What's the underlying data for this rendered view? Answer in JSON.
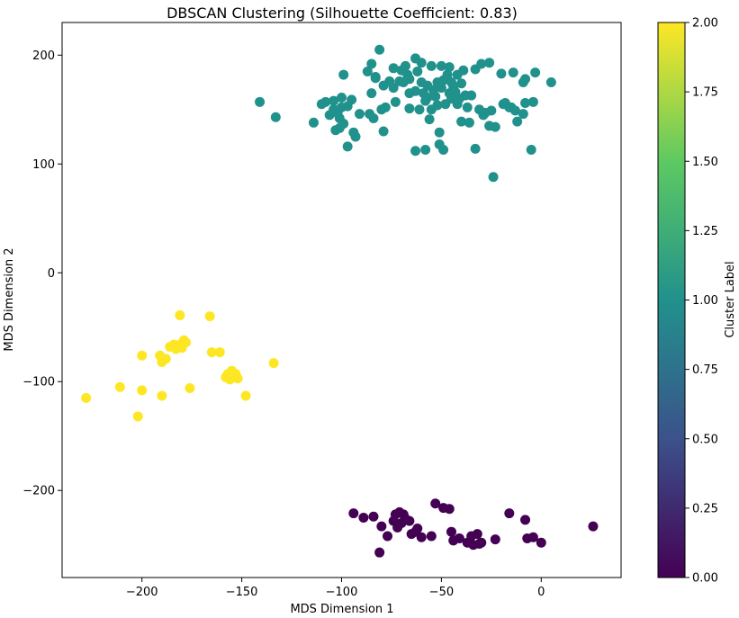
{
  "chart_data": {
    "type": "scatter",
    "title": "DBSCAN Clustering (Silhouette Coefficient: 0.83)",
    "xlabel": "MDS Dimension 1",
    "ylabel": "MDS Dimension 2",
    "xlim": [
      -240,
      40
    ],
    "ylim": [
      -280,
      230
    ],
    "xticks": [
      -200,
      -150,
      -100,
      -50,
      0
    ],
    "xtick_labels": [
      "−200",
      "−150",
      "−100",
      "−50",
      "0"
    ],
    "yticks": [
      -200,
      -100,
      0,
      100,
      200
    ],
    "ytick_labels": [
      "−200",
      "−100",
      "0",
      "100",
      "200"
    ],
    "grid": false,
    "colorbar": {
      "label": "Cluster Label",
      "range": [
        0.0,
        2.0
      ],
      "ticks": [
        0.0,
        0.25,
        0.5,
        0.75,
        1.0,
        1.25,
        1.5,
        1.75,
        2.0
      ],
      "tick_labels": [
        "0.00",
        "0.25",
        "0.50",
        "0.75",
        "1.00",
        "1.25",
        "1.50",
        "1.75",
        "2.00"
      ],
      "colormap": "viridis",
      "colors": [
        "#440154",
        "#3b528b",
        "#21918c",
        "#5ec962",
        "#fde725"
      ]
    },
    "series": [
      {
        "label": 1,
        "color": "#21918c",
        "points": [
          [
            -81,
            205
          ],
          [
            -85,
            192
          ],
          [
            -87,
            185
          ],
          [
            -83,
            180
          ],
          [
            -74,
            188
          ],
          [
            -79,
            172
          ],
          [
            -76,
            176
          ],
          [
            -70,
            186
          ],
          [
            -68,
            190
          ],
          [
            -63,
            197
          ],
          [
            -60,
            193
          ],
          [
            -55,
            190
          ],
          [
            -50,
            190
          ],
          [
            -46,
            189
          ],
          [
            -42,
            182
          ],
          [
            -39,
            186
          ],
          [
            -33,
            187
          ],
          [
            -30,
            192
          ],
          [
            -26,
            193
          ],
          [
            -20,
            183
          ],
          [
            -14,
            184
          ],
          [
            -9,
            175
          ],
          [
            -3,
            184
          ],
          [
            5,
            175
          ],
          [
            -99,
            182
          ],
          [
            -71,
            176
          ],
          [
            -66,
            165
          ],
          [
            -63,
            167
          ],
          [
            -59,
            165
          ],
          [
            -57,
            172
          ],
          [
            -54,
            168
          ],
          [
            -52,
            175
          ],
          [
            -50,
            170
          ],
          [
            -49,
            177
          ],
          [
            -47,
            182
          ],
          [
            -45,
            175
          ],
          [
            -43,
            166
          ],
          [
            -41,
            160
          ],
          [
            -48,
            155
          ],
          [
            -55,
            150
          ],
          [
            -61,
            150
          ],
          [
            -66,
            151
          ],
          [
            -73,
            157
          ],
          [
            -78,
            152
          ],
          [
            -85,
            165
          ],
          [
            -91,
            146
          ],
          [
            -97,
            153
          ],
          [
            -104,
            158
          ],
          [
            -108,
            157
          ],
          [
            -110,
            155
          ],
          [
            -104,
            150
          ],
          [
            -101,
            142
          ],
          [
            -99,
            137
          ],
          [
            -101,
            133
          ],
          [
            -103,
            131
          ],
          [
            -114,
            138
          ],
          [
            -94,
            129
          ],
          [
            -93,
            125
          ],
          [
            -97,
            116
          ],
          [
            -84,
            142
          ],
          [
            -79,
            130
          ],
          [
            -133,
            143
          ],
          [
            -141,
            157
          ],
          [
            -58,
            113
          ],
          [
            -63,
            112
          ],
          [
            -51,
            118
          ],
          [
            -49,
            113
          ],
          [
            -40,
            139
          ],
          [
            -36,
            138
          ],
          [
            -33,
            114
          ],
          [
            -29,
            145
          ],
          [
            -25,
            149
          ],
          [
            -26,
            135
          ],
          [
            -23,
            134
          ],
          [
            -16,
            152
          ],
          [
            -13,
            149
          ],
          [
            -12,
            139
          ],
          [
            -9,
            146
          ],
          [
            -8,
            156
          ],
          [
            -4,
            157
          ],
          [
            -8,
            178
          ],
          [
            -18,
            156
          ],
          [
            -5,
            113
          ],
          [
            -24,
            88
          ],
          [
            -56,
            141
          ],
          [
            -51,
            129
          ],
          [
            -38,
            163
          ],
          [
            -35,
            163
          ],
          [
            -62,
            185
          ],
          [
            -66,
            178
          ],
          [
            -69,
            175
          ],
          [
            -74,
            170
          ],
          [
            -46,
            165
          ],
          [
            -44,
            171
          ],
          [
            -58,
            158
          ],
          [
            -53,
            162
          ],
          [
            -100,
            161
          ],
          [
            -95,
            159
          ],
          [
            -86,
            146
          ],
          [
            -80,
            150
          ],
          [
            -106,
            145
          ],
          [
            -102,
            147
          ],
          [
            -100,
            152
          ],
          [
            -83,
            179
          ],
          [
            -67,
            182
          ],
          [
            -40,
            174
          ],
          [
            -37,
            152
          ],
          [
            -60,
            175
          ],
          [
            -57,
            161
          ],
          [
            -52,
            154
          ],
          [
            -45,
            160
          ],
          [
            -42,
            155
          ],
          [
            -31,
            150
          ],
          [
            -28,
            147
          ],
          [
            -19,
            155
          ],
          [
            -15,
            152
          ]
        ]
      },
      {
        "label": 2,
        "color": "#fde725",
        "points": [
          [
            -181,
            -39
          ],
          [
            -166,
            -40
          ],
          [
            -179,
            -62
          ],
          [
            -178,
            -64
          ],
          [
            -181,
            -66
          ],
          [
            -184,
            -66
          ],
          [
            -186,
            -68
          ],
          [
            -188,
            -79
          ],
          [
            -191,
            -76
          ],
          [
            -190,
            -82
          ],
          [
            -200,
            -76
          ],
          [
            -165,
            -73
          ],
          [
            -161,
            -73
          ],
          [
            -157,
            -93
          ],
          [
            -155,
            -90
          ],
          [
            -153,
            -93
          ],
          [
            -154,
            -96
          ],
          [
            -158,
            -96
          ],
          [
            -156,
            -98
          ],
          [
            -152,
            -97
          ],
          [
            -134,
            -83
          ],
          [
            -148,
            -113
          ],
          [
            -176,
            -106
          ],
          [
            -190,
            -113
          ],
          [
            -200,
            -108
          ],
          [
            -211,
            -105
          ],
          [
            -202,
            -132
          ],
          [
            -228,
            -115
          ],
          [
            -180,
            -69
          ],
          [
            -183,
            -70
          ]
        ]
      },
      {
        "label": 0,
        "color": "#440154",
        "points": [
          [
            -94,
            -221
          ],
          [
            -89,
            -225
          ],
          [
            -84,
            -224
          ],
          [
            -80,
            -233
          ],
          [
            -77,
            -242
          ],
          [
            -81,
            -257
          ],
          [
            -73,
            -222
          ],
          [
            -71,
            -220
          ],
          [
            -74,
            -228
          ],
          [
            -72,
            -234
          ],
          [
            -70,
            -230
          ],
          [
            -69,
            -222
          ],
          [
            -68,
            -226
          ],
          [
            -65,
            -240
          ],
          [
            -62,
            -235
          ],
          [
            -63,
            -238
          ],
          [
            -55,
            -242
          ],
          [
            -53,
            -212
          ],
          [
            -49,
            -216
          ],
          [
            -46,
            -217
          ],
          [
            -45,
            -238
          ],
          [
            -44,
            -246
          ],
          [
            -41,
            -244
          ],
          [
            -37,
            -248
          ],
          [
            -35,
            -242
          ],
          [
            -34,
            -250
          ],
          [
            -30,
            -248
          ],
          [
            -31,
            -249
          ],
          [
            -32,
            -240
          ],
          [
            -23,
            -245
          ],
          [
            -16,
            -221
          ],
          [
            -8,
            -227
          ],
          [
            -7,
            -244
          ],
          [
            -4,
            -243
          ],
          [
            0,
            -248
          ],
          [
            26,
            -233
          ],
          [
            -66,
            -228
          ],
          [
            -60,
            -243
          ]
        ]
      }
    ]
  }
}
